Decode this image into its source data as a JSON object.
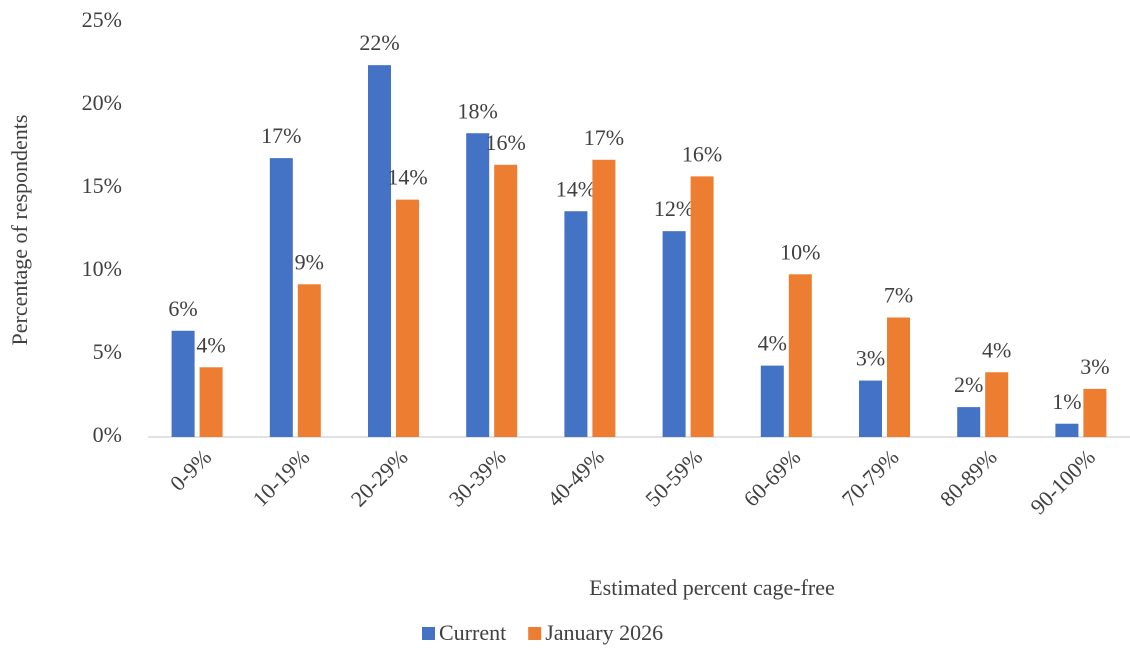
{
  "chart_data": {
    "type": "bar",
    "x_label": "Estimated percent cage-free",
    "y_label": "Percentage of respondents",
    "categories": [
      "0-9%",
      "10-19%",
      "20-29%",
      "30-39%",
      "40-49%",
      "50-59%",
      "60-69%",
      "70-79%",
      "80-89%",
      "90-100%"
    ],
    "series": [
      {
        "name": "Current",
        "color": "#4472c4",
        "values": [
          6.4,
          16.8,
          22.4,
          18.3,
          13.6,
          12.4,
          4.3,
          3.4,
          1.8,
          0.8
        ],
        "value_labels": [
          "6%",
          "17%",
          "22%",
          "18%",
          "14%",
          "12%",
          "4%",
          "3%",
          "2%",
          "1%"
        ]
      },
      {
        "name": "January 2026",
        "color": "#ed7d31",
        "values": [
          4.2,
          9.2,
          14.3,
          16.4,
          16.7,
          15.7,
          9.8,
          7.2,
          3.9,
          2.9
        ],
        "value_labels": [
          "4%",
          "9%",
          "14%",
          "16%",
          "17%",
          "16%",
          "10%",
          "7%",
          "4%",
          "3%"
        ]
      }
    ],
    "ylim": [
      0,
      25
    ],
    "yticks": [
      {
        "value": 0,
        "label": "0%"
      },
      {
        "value": 5,
        "label": "5%"
      },
      {
        "value": 10,
        "label": "10%"
      },
      {
        "value": 15,
        "label": "15%"
      },
      {
        "value": 20,
        "label": "20%"
      },
      {
        "value": 25,
        "label": "25%"
      }
    ],
    "legend": "bottom"
  }
}
